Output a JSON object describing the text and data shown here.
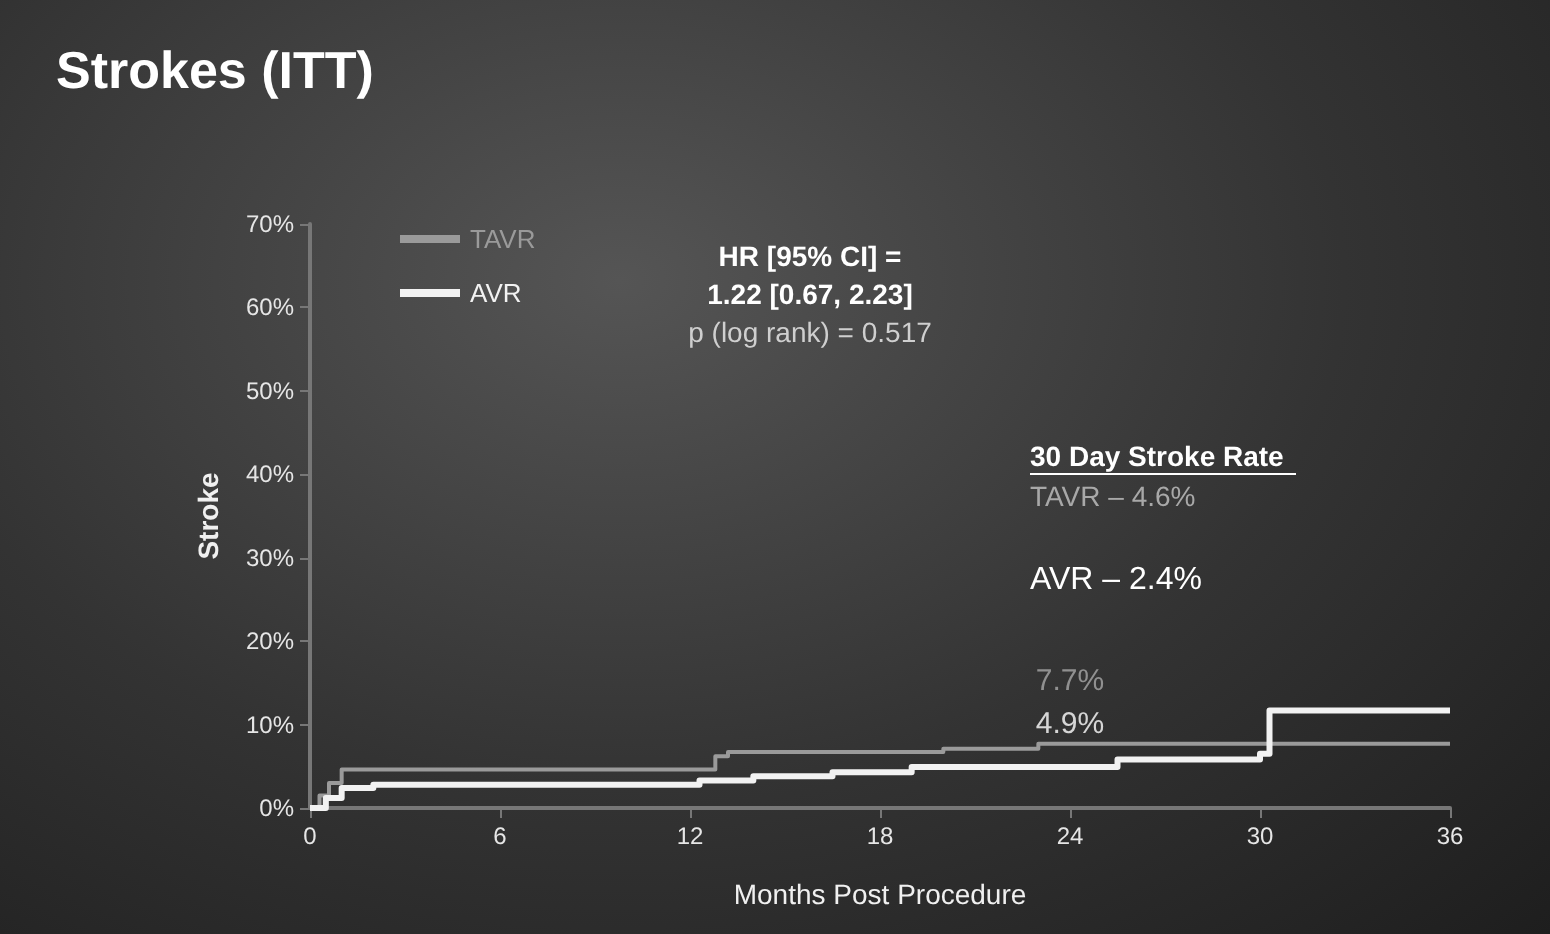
{
  "chart_data": {
    "type": "step",
    "title": "Strokes (ITT)",
    "xlabel": "Months Post Procedure",
    "ylabel": "Stroke",
    "xlim": [
      0,
      36
    ],
    "xticks": [
      0,
      6,
      12,
      18,
      24,
      30,
      36
    ],
    "ylim": [
      0,
      70
    ],
    "yticks": [
      {
        "value": 0,
        "label": "0%"
      },
      {
        "value": 10,
        "label": "10%"
      },
      {
        "value": 20,
        "label": "20%"
      },
      {
        "value": 30,
        "label": "30%"
      },
      {
        "value": 40,
        "label": "40%"
      },
      {
        "value": 50,
        "label": "50%"
      },
      {
        "value": 60,
        "label": "60%"
      },
      {
        "value": 70,
        "label": "70%"
      }
    ],
    "series": [
      {
        "name": "TAVR",
        "color": "#9a9a9a",
        "x": [
          0,
          0.3,
          0.6,
          1,
          12.8,
          13.2,
          20,
          23,
          36
        ],
        "values": [
          0,
          1.5,
          3,
          4.6,
          6.2,
          6.7,
          7.1,
          7.7,
          7.7
        ]
      },
      {
        "name": "AVR",
        "color": "#f2f2f2",
        "x": [
          0,
          0.5,
          1,
          2,
          12.3,
          14,
          16.5,
          19,
          25.5,
          30,
          30.3,
          36
        ],
        "values": [
          0,
          1.2,
          2.4,
          2.8,
          3.3,
          3.8,
          4.3,
          4.9,
          5.8,
          6.5,
          11.7,
          11.7
        ]
      }
    ],
    "annotations": [
      "HR [95% CI] =",
      "1.22 [0.67, 2.23]",
      "p (log rank) = 0.517",
      "30 Day Stroke Rate",
      "TAVR – 4.6%",
      "AVR – 2.4%",
      {
        "text": "7.7%",
        "x": 24,
        "y": 7.7
      },
      {
        "text": "4.9%",
        "x": 24,
        "y": 4.9
      }
    ],
    "grid": false,
    "legend": "top left",
    "marker": "none",
    "line_style": "solid"
  }
}
